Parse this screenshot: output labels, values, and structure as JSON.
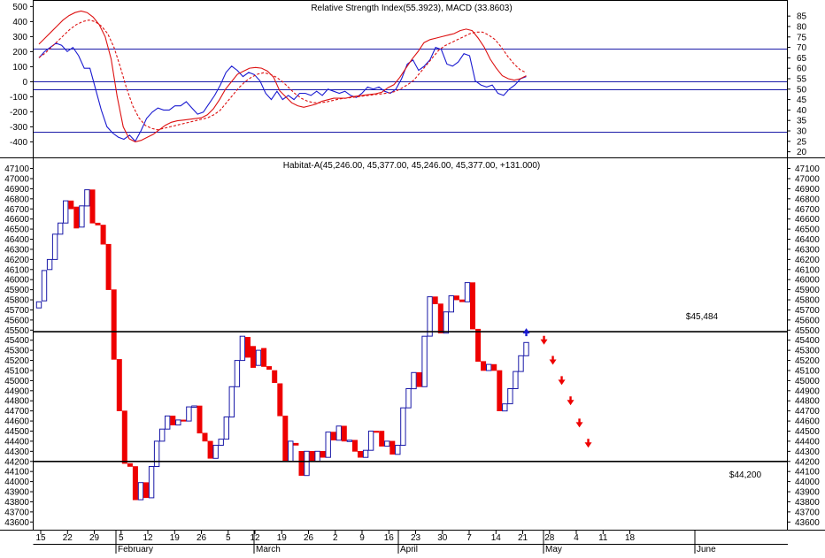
{
  "indicator_title": "Relative Strength Index(55.3923), MACD (33.8603)",
  "price_title": "Habitat-A(45,246.00, 45,377.00, 45,246.00, 45,377.00, +131.000)",
  "annotation_high": "$45,484",
  "annotation_low": "$44,200",
  "colors": {
    "up": "#1a1aa8",
    "down": "#ee0000",
    "rsi_line": "#1a1ad0",
    "macd": "#dd1111",
    "grid": "#000000"
  },
  "chart_data": [
    {
      "type": "line",
      "title": "Relative Strength Index(55.3923), MACD (33.8603)",
      "left_axis": {
        "ylim": [
          -480,
          520
        ],
        "ticks": [
          500,
          400,
          300,
          200,
          100,
          0,
          -100,
          -200,
          -300,
          -400
        ]
      },
      "right_axis": {
        "ylim": [
          19,
          91
        ],
        "ticks": [
          85,
          80,
          75,
          70,
          65,
          60,
          55,
          50,
          45,
          40,
          35,
          30,
          25,
          20
        ]
      },
      "reference_lines_left": [
        220,
        0,
        -50,
        -330
      ],
      "series": [
        {
          "role": "rsi",
          "axis": "right",
          "values": [
            65,
            68,
            70,
            72,
            71,
            68,
            70,
            66,
            60,
            60,
            50,
            40,
            32,
            29,
            27,
            26,
            28,
            25,
            30,
            36,
            39,
            41,
            40,
            40,
            42,
            42,
            44,
            41,
            38,
            39,
            43,
            47,
            52,
            58,
            61,
            59,
            56,
            58,
            57,
            54,
            48,
            45,
            49,
            45,
            47,
            45,
            48,
            48,
            47,
            49,
            47,
            50,
            49,
            48,
            49,
            47,
            46,
            48,
            51,
            50,
            51,
            49,
            48,
            50,
            55,
            62,
            64,
            59,
            61,
            64,
            70,
            69,
            62,
            61,
            63,
            67,
            66,
            54,
            52,
            51,
            52,
            48,
            47,
            50,
            52,
            55,
            56
          ]
        },
        {
          "role": "macd",
          "axis": "left",
          "values": [
            250,
            290,
            330,
            370,
            410,
            440,
            460,
            470,
            460,
            430,
            380,
            300,
            150,
            -100,
            -300,
            -380,
            -400,
            -390,
            -370,
            -350,
            -320,
            -290,
            -270,
            -260,
            -255,
            -250,
            -245,
            -240,
            -220,
            -180,
            -120,
            -50,
            0,
            50,
            70,
            90,
            95,
            90,
            70,
            30,
            -60,
            -100,
            -140,
            -160,
            -170,
            -160,
            -150,
            -130,
            -120,
            -110,
            -110,
            -110,
            -100,
            -95,
            -90,
            -85,
            -80,
            -70,
            -40,
            -20,
            30,
            90,
            150,
            200,
            260,
            280,
            290,
            300,
            310,
            320,
            340,
            350,
            340,
            290,
            230,
            150,
            90,
            40,
            20,
            10,
            20,
            40
          ]
        },
        {
          "role": "signal",
          "axis": "left",
          "values": [
            160,
            190,
            230,
            270,
            310,
            350,
            380,
            400,
            410,
            400,
            370,
            320,
            230,
            100,
            -40,
            -160,
            -240,
            -290,
            -310,
            -320,
            -310,
            -300,
            -290,
            -280,
            -270,
            -260,
            -250,
            -240,
            -220,
            -190,
            -140,
            -90,
            -40,
            0,
            30,
            50,
            60,
            50,
            30,
            0,
            -40,
            -80,
            -110,
            -130,
            -140,
            -140,
            -135,
            -125,
            -115,
            -110,
            -105,
            -100,
            -95,
            -90,
            -85,
            -80,
            -75,
            -65,
            -45,
            -20,
            10,
            60,
            110,
            160,
            210,
            240,
            260,
            280,
            300,
            320,
            330,
            330,
            310,
            280,
            230,
            170,
            120,
            80,
            60
          ]
        }
      ]
    },
    {
      "type": "candlestick",
      "title": "Habitat-A(45,246.00, 45,377.00, 45,246.00, 45,377.00, +131.000)",
      "ylim": [
        43550,
        47140
      ],
      "y_ticks": [
        47100,
        47000,
        46900,
        46800,
        46700,
        46600,
        46500,
        46400,
        46300,
        46200,
        46100,
        46000,
        45900,
        45800,
        45700,
        45600,
        45500,
        45400,
        45300,
        45200,
        45100,
        45000,
        44900,
        44800,
        44700,
        44600,
        44500,
        44400,
        44300,
        44200,
        44100,
        44000,
        43900,
        43800,
        43700,
        43600
      ],
      "horizontal_levels": [
        45484,
        44200
      ],
      "x_tick_labels": [
        "15",
        "22",
        "29",
        "5",
        "12",
        "19",
        "26",
        "5",
        "12",
        "19",
        "26",
        "2",
        "9",
        "16",
        "23",
        "30",
        "7",
        "14",
        "21",
        "28",
        "4",
        "11",
        "18"
      ],
      "month_labels": [
        "February",
        "March",
        "April",
        "May",
        "June"
      ],
      "candles": [
        {
          "o": 45720,
          "c": 45780
        },
        {
          "o": 45790,
          "c": 46090
        },
        {
          "o": 46100,
          "c": 46200
        },
        {
          "o": 46200,
          "c": 46450
        },
        {
          "o": 46450,
          "c": 46560
        },
        {
          "o": 46560,
          "c": 46780
        },
        {
          "o": 46780,
          "c": 46700
        },
        {
          "o": 46720,
          "c": 46510
        },
        {
          "o": 46520,
          "c": 46730
        },
        {
          "o": 46730,
          "c": 46890
        },
        {
          "o": 46890,
          "c": 46560
        },
        {
          "o": 46560,
          "c": 46540
        },
        {
          "o": 46540,
          "c": 46350
        },
        {
          "o": 46350,
          "c": 45900
        },
        {
          "o": 45900,
          "c": 45210
        },
        {
          "o": 45210,
          "c": 44700
        },
        {
          "o": 44700,
          "c": 44180
        },
        {
          "o": 44180,
          "c": 44150
        },
        {
          "o": 44150,
          "c": 43820
        },
        {
          "o": 43820,
          "c": 43990
        },
        {
          "o": 43990,
          "c": 43840
        },
        {
          "o": 43840,
          "c": 44150
        },
        {
          "o": 44150,
          "c": 44400
        },
        {
          "o": 44400,
          "c": 44520
        },
        {
          "o": 44520,
          "c": 44650
        },
        {
          "o": 44650,
          "c": 44560
        },
        {
          "o": 44560,
          "c": 44610
        },
        {
          "o": 44610,
          "c": 44600
        },
        {
          "o": 44600,
          "c": 44740
        },
        {
          "o": 44740,
          "c": 44750
        },
        {
          "o": 44750,
          "c": 44480
        },
        {
          "o": 44480,
          "c": 44400
        },
        {
          "o": 44400,
          "c": 44230
        },
        {
          "o": 44230,
          "c": 44360
        },
        {
          "o": 44360,
          "c": 44420
        },
        {
          "o": 44420,
          "c": 44640
        },
        {
          "o": 44640,
          "c": 44940
        },
        {
          "o": 44940,
          "c": 45200
        },
        {
          "o": 45200,
          "c": 45440
        },
        {
          "o": 45430,
          "c": 45230
        },
        {
          "o": 45340,
          "c": 45130
        },
        {
          "o": 45150,
          "c": 45300
        },
        {
          "o": 45320,
          "c": 45140
        },
        {
          "o": 45140,
          "c": 45110
        },
        {
          "o": 45100,
          "c": 44980
        },
        {
          "o": 44970,
          "c": 44650
        },
        {
          "o": 44650,
          "c": 44200
        },
        {
          "o": 44200,
          "c": 44400
        },
        {
          "o": 44380,
          "c": 44360
        },
        {
          "o": 44300,
          "c": 44060
        },
        {
          "o": 44060,
          "c": 44300
        },
        {
          "o": 44300,
          "c": 44200
        },
        {
          "o": 44200,
          "c": 44300
        },
        {
          "o": 44300,
          "c": 44240
        },
        {
          "o": 44240,
          "c": 44490
        },
        {
          "o": 44490,
          "c": 44410
        },
        {
          "o": 44410,
          "c": 44550
        },
        {
          "o": 44550,
          "c": 44400
        },
        {
          "o": 44400,
          "c": 44410
        },
        {
          "o": 44410,
          "c": 44300
        },
        {
          "o": 44300,
          "c": 44240
        },
        {
          "o": 44240,
          "c": 44310
        },
        {
          "o": 44310,
          "c": 44500
        },
        {
          "o": 44500,
          "c": 44490
        },
        {
          "o": 44500,
          "c": 44350
        },
        {
          "o": 44350,
          "c": 44400
        },
        {
          "o": 44400,
          "c": 44270
        },
        {
          "o": 44270,
          "c": 44360
        },
        {
          "o": 44360,
          "c": 44730
        },
        {
          "o": 44730,
          "c": 44920
        },
        {
          "o": 44920,
          "c": 45080
        },
        {
          "o": 45080,
          "c": 44940
        },
        {
          "o": 44940,
          "c": 45440
        },
        {
          "o": 45440,
          "c": 45830
        },
        {
          "o": 45830,
          "c": 45760
        },
        {
          "o": 45760,
          "c": 45470
        },
        {
          "o": 45470,
          "c": 45680
        },
        {
          "o": 45680,
          "c": 45840
        },
        {
          "o": 45840,
          "c": 45800
        },
        {
          "o": 45800,
          "c": 45780
        },
        {
          "o": 45780,
          "c": 45970
        },
        {
          "o": 45970,
          "c": 45510
        },
        {
          "o": 45510,
          "c": 45190
        },
        {
          "o": 45190,
          "c": 45100
        },
        {
          "o": 45100,
          "c": 45160
        },
        {
          "o": 45160,
          "c": 45100
        },
        {
          "o": 45100,
          "c": 44700
        },
        {
          "o": 44700,
          "c": 44770
        },
        {
          "o": 44770,
          "c": 44920
        },
        {
          "o": 44920,
          "c": 45090
        },
        {
          "o": 45090,
          "c": 45246
        },
        {
          "o": 45246,
          "c": 45377
        }
      ],
      "forecast_arrows": [
        45484,
        45400,
        45200,
        45000,
        44800,
        44580,
        44380
      ]
    }
  ]
}
